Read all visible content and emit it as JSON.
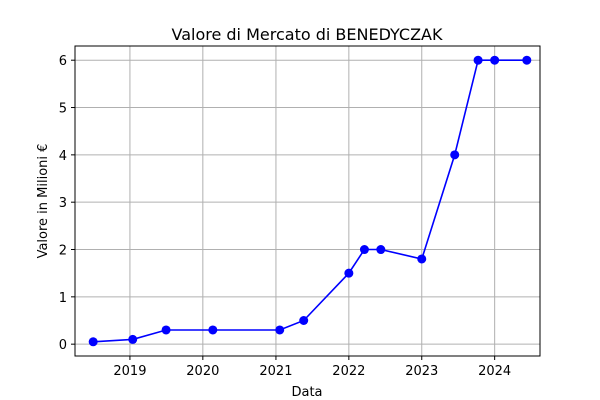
{
  "chart_data": {
    "type": "line",
    "title": "Valore di Mercato di BENEDYCZAK",
    "xlabel": "Data",
    "ylabel": "Valore in Milioni €",
    "x_ticks": [
      "2019",
      "2020",
      "2021",
      "2022",
      "2023",
      "2024"
    ],
    "y_ticks": [
      "0",
      "1",
      "2",
      "3",
      "4",
      "5",
      "6"
    ],
    "xlim": [
      "2018-04-01",
      "2024-08-15"
    ],
    "ylim": [
      -0.25,
      6.3
    ],
    "grid": true,
    "series": [
      {
        "color": "#0000ff",
        "x": [
          "2018-07-01",
          "2019-01-15",
          "2019-07-01",
          "2020-02-20",
          "2021-01-20",
          "2021-05-20",
          "2022-01-01",
          "2022-03-20",
          "2022-06-10",
          "2023-01-01",
          "2023-06-15",
          "2023-10-10",
          "2024-01-01",
          "2024-06-10"
        ],
        "values": [
          0.05,
          0.1,
          0.3,
          0.3,
          0.3,
          0.5,
          1.5,
          2.0,
          2.0,
          1.8,
          4.0,
          6.0,
          6.0,
          6.0
        ]
      }
    ]
  }
}
